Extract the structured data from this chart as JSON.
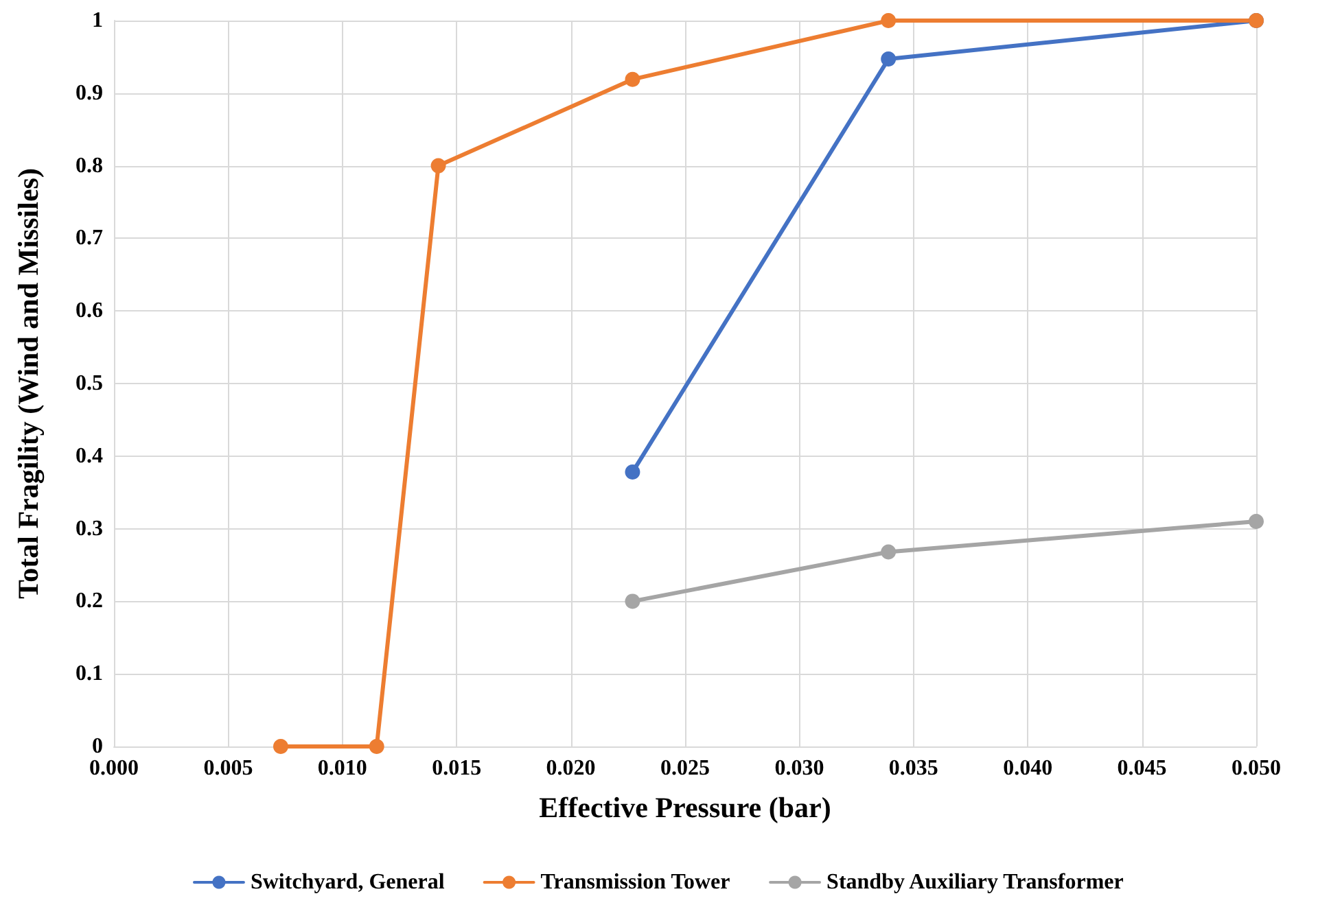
{
  "chart_data": {
    "type": "line",
    "xlabel": "Effective Pressure (bar)",
    "ylabel": "Total Fragility (Wind and Missiles)",
    "xlim": [
      0,
      0.05
    ],
    "xticks": [
      {
        "value": 0,
        "label": "0.000"
      },
      {
        "value": 0.005,
        "label": "0.005"
      },
      {
        "value": 0.01,
        "label": "0.010"
      },
      {
        "value": 0.015,
        "label": "0.015"
      },
      {
        "value": 0.02,
        "label": "0.020"
      },
      {
        "value": 0.025,
        "label": "0.025"
      },
      {
        "value": 0.03,
        "label": "0.030"
      },
      {
        "value": 0.035,
        "label": "0.035"
      },
      {
        "value": 0.04,
        "label": "0.040"
      },
      {
        "value": 0.045,
        "label": "0.045"
      },
      {
        "value": 0.05,
        "label": "0.050"
      }
    ],
    "ylim": [
      0,
      1
    ],
    "yticks": [
      0,
      0.1,
      0.2,
      0.3,
      0.4,
      0.5,
      0.6,
      0.7,
      0.8,
      0.9,
      1
    ],
    "grid": true,
    "legend": "bottom",
    "marker": "circle",
    "series": [
      {
        "name": "Switchyard, General",
        "color": "#4472c4",
        "x": [
          0.0227,
          0.0339,
          0.05
        ],
        "values": [
          0.378,
          0.947,
          1
        ]
      },
      {
        "name": "Transmission Tower",
        "color": "#ed7d31",
        "x": [
          0.0073,
          0.0115,
          0.0142,
          0.0227,
          0.0339,
          0.05
        ],
        "values": [
          0,
          0,
          0.8,
          0.919,
          1,
          1
        ]
      },
      {
        "name": "Standby Auxiliary Transformer",
        "color": "#a5a5a5",
        "x": [
          0.0227,
          0.0339,
          0.05
        ],
        "values": [
          0.2,
          0.268,
          0.31
        ]
      }
    ]
  }
}
